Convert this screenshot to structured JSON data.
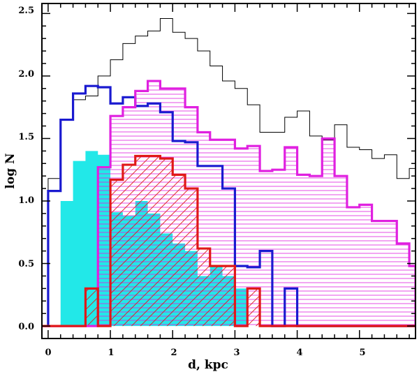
{
  "chart_data": {
    "type": "histogram-step",
    "title": "",
    "xlabel": "d, kpc",
    "ylabel": "log N",
    "xlim": [
      -0.1,
      5.9
    ],
    "ylim": [
      -0.1,
      2.58
    ],
    "bin_width": 0.2,
    "x_ticks": [
      0,
      1,
      2,
      3,
      4,
      5
    ],
    "x_tick_labels": [
      "0",
      "1",
      "2",
      "3",
      "4",
      "5"
    ],
    "y_ticks": [
      0.0,
      0.5,
      1.0,
      1.5,
      2.0,
      2.5
    ],
    "y_tick_labels": [
      "0.0",
      "0.5",
      "1.0",
      "1.5",
      "2.0",
      "2.5"
    ],
    "colors": {
      "total": "#000000",
      "blue": "#1a1ad0",
      "magenta": "#e020e0",
      "red": "#e01818",
      "cyan": "#22e8e8"
    },
    "series": [
      {
        "name": "cyan",
        "style": "filled",
        "x_edges": [
          0.2,
          0.4,
          0.6,
          0.8,
          1.0,
          1.2,
          1.4,
          1.6,
          1.8,
          2.0,
          2.2,
          2.4,
          2.6,
          2.8,
          3.0,
          3.2
        ],
        "values": [
          1.0,
          1.32,
          1.4,
          1.37,
          0.91,
          0.88,
          1.0,
          0.9,
          0.74,
          0.66,
          0.6,
          0.4,
          0.48,
          0.4,
          0.3
        ]
      },
      {
        "name": "total",
        "style": "thin",
        "x_edges": [
          -0.2,
          0.0,
          0.2,
          0.4,
          0.6,
          0.8,
          1.0,
          1.2,
          1.4,
          1.6,
          1.8,
          2.0,
          2.2,
          2.4,
          2.6,
          2.8,
          3.0,
          3.2,
          3.4,
          3.6,
          3.8,
          4.0,
          4.2,
          4.4,
          4.6,
          4.8,
          5.0,
          5.2,
          5.4,
          5.6,
          5.8,
          5.9
        ],
        "values": [
          0,
          1.18,
          1.65,
          1.81,
          1.84,
          2.0,
          2.13,
          2.26,
          2.32,
          2.36,
          2.46,
          2.35,
          2.3,
          2.2,
          2.08,
          1.96,
          1.9,
          1.77,
          1.55,
          1.55,
          1.67,
          1.72,
          1.52,
          1.49,
          1.61,
          1.43,
          1.41,
          1.34,
          1.37,
          1.18,
          1.26
        ]
      },
      {
        "name": "blue",
        "style": "thick",
        "x_edges": [
          -0.2,
          0.0,
          0.2,
          0.4,
          0.6,
          0.8,
          1.0,
          1.2,
          1.4,
          1.6,
          1.8,
          2.0,
          2.2,
          2.4,
          2.6,
          2.8,
          3.0,
          3.2,
          3.4,
          3.6,
          3.8,
          4.0,
          5.9
        ],
        "values": [
          0,
          1.08,
          1.65,
          1.86,
          1.92,
          1.91,
          1.78,
          1.83,
          1.76,
          1.78,
          1.71,
          1.48,
          1.47,
          1.28,
          1.28,
          1.1,
          0.48,
          0.47,
          0.6,
          0,
          0.3,
          0
        ]
      },
      {
        "name": "magenta",
        "style": "hatched-horizontal",
        "x_edges": [
          0.0,
          0.8,
          1.0,
          1.2,
          1.4,
          1.6,
          1.8,
          2.0,
          2.2,
          2.4,
          2.6,
          2.8,
          3.0,
          3.2,
          3.4,
          3.6,
          3.8,
          4.0,
          4.2,
          4.4,
          4.6,
          4.8,
          5.0,
          5.2,
          5.4,
          5.6,
          5.8,
          5.9
        ],
        "values": [
          0,
          1.27,
          1.68,
          1.75,
          1.88,
          1.96,
          1.9,
          1.9,
          1.75,
          1.55,
          1.49,
          1.49,
          1.42,
          1.44,
          1.24,
          1.25,
          1.43,
          1.21,
          1.2,
          1.5,
          1.2,
          0.95,
          0.97,
          0.84,
          0.84,
          0.66,
          0.48
        ]
      },
      {
        "name": "red",
        "style": "hatched-diagonal",
        "x_edges": [
          -0.2,
          0.6,
          0.8,
          1.0,
          1.2,
          1.4,
          1.6,
          1.8,
          2.0,
          2.2,
          2.4,
          2.6,
          2.8,
          3.0,
          3.2,
          3.4,
          3.6,
          5.9
        ],
        "values": [
          0,
          0.3,
          0,
          1.17,
          1.29,
          1.36,
          1.36,
          1.34,
          1.21,
          1.1,
          0.62,
          0.48,
          0.48,
          0,
          0.3,
          0,
          0
        ]
      }
    ]
  }
}
